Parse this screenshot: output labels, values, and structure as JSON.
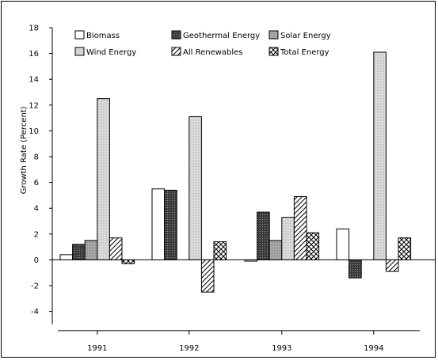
{
  "chart_data": {
    "type": "bar",
    "title": "",
    "xlabel": "",
    "ylabel": "Growth Rate (Percent)",
    "ylim": [
      -5,
      18
    ],
    "yticks": [
      -4,
      -2,
      0,
      2,
      4,
      6,
      8,
      10,
      12,
      14,
      16,
      18
    ],
    "categories": [
      "1991",
      "1992",
      "1993",
      "1994"
    ],
    "legend_position": "top",
    "series": [
      {
        "name": "Biomass",
        "pattern": "white",
        "values": [
          0.4,
          5.5,
          -0.1,
          2.4
        ]
      },
      {
        "name": "Geothermal Energy",
        "pattern": "dark-dots",
        "values": [
          1.2,
          5.4,
          3.7,
          -1.4
        ]
      },
      {
        "name": "Solar Energy",
        "pattern": "medium-gray",
        "values": [
          1.5,
          null,
          1.5,
          null
        ]
      },
      {
        "name": "Wind Energy",
        "pattern": "light-gray",
        "values": [
          12.5,
          11.1,
          3.3,
          16.1
        ]
      },
      {
        "name": "All Renewables",
        "pattern": "diagonal-hatch",
        "values": [
          1.7,
          -2.5,
          4.9,
          -0.9
        ]
      },
      {
        "name": "Total Energy",
        "pattern": "cross-hatch",
        "values": [
          -0.3,
          1.4,
          2.1,
          1.7
        ]
      }
    ]
  }
}
